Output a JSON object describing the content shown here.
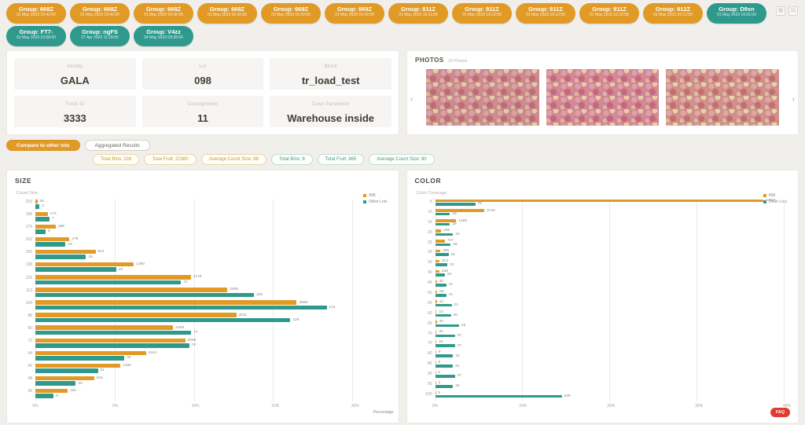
{
  "groups": {
    "rows": [
      [
        {
          "label": "Group: 668Z",
          "datetime": "01 May 2023 15:42:00",
          "variant": "orange"
        },
        {
          "label": "Group: 668Z",
          "datetime": "01 May 2023 15:42:00",
          "variant": "orange"
        },
        {
          "label": "Group: 668Z",
          "datetime": "01 May 2023 15:42:00",
          "variant": "orange"
        },
        {
          "label": "Group: 668Z",
          "datetime": "01 May 2023 15:42:00",
          "variant": "orange"
        },
        {
          "label": "Group: 669Z",
          "datetime": "01 May 2023 15:42:00",
          "variant": "orange"
        },
        {
          "label": "Group: 669Z",
          "datetime": "01 May 2023 15:42:00",
          "variant": "orange"
        },
        {
          "label": "Group: 811Z",
          "datetime": "01 May 2023 16:11:00",
          "variant": "orange"
        },
        {
          "label": "Group: 811Z",
          "datetime": "01 May 2023 16:12:00",
          "variant": "orange"
        },
        {
          "label": "Group: 811Z",
          "datetime": "01 May 2023 16:12:00",
          "variant": "orange"
        },
        {
          "label": "Group: 811Z",
          "datetime": "01 May 2023 16:12:00",
          "variant": "orange"
        },
        {
          "label": "Group: 812Z",
          "datetime": "01 May 2023 16:12:00",
          "variant": "orange"
        },
        {
          "label": "Group: D9xn",
          "datetime": "01 May 2023 16:01:00",
          "variant": "teal"
        }
      ],
      [
        {
          "label": "Group: FT7-",
          "datetime": "01 May 2023 15:58:00",
          "variant": "teal"
        },
        {
          "label": "Group: ngFS",
          "datetime": "27 Apr 2023 11:18:00",
          "variant": "teal"
        },
        {
          "label": "Group: V4zz",
          "datetime": "04 May 2023 09:28:00",
          "variant": "teal"
        }
      ]
    ]
  },
  "header_icons": [
    {
      "name": "grid-view-icon",
      "glyph": "▦"
    },
    {
      "name": "card-view-icon",
      "glyph": "▤"
    }
  ],
  "info": {
    "fields": [
      {
        "label": "Variety",
        "value": "GALA"
      },
      {
        "label": "Lot",
        "value": "098"
      },
      {
        "label": "Block",
        "value": "tr_load_test"
      },
      {
        "label": "Truck ID",
        "value": "3333"
      },
      {
        "label": "Consignment",
        "value": "11"
      },
      {
        "label": "Color Parameter",
        "value": "Warehouse inside"
      }
    ]
  },
  "photos": {
    "title": "PHOTOS",
    "count_label": "18 Photos",
    "prev": "‹",
    "next": "›",
    "image_count": 3,
    "image_alt": "apple-bin-photo"
  },
  "actions": {
    "compare": "Compare to other lots",
    "aggregated": "Aggregated Results"
  },
  "stats": [
    {
      "label": "Total Bins: 228",
      "variant": "orange"
    },
    {
      "label": "Total Fruit: 22380",
      "variant": "orange"
    },
    {
      "label": "Average Count Size: 88",
      "variant": "orange"
    },
    {
      "label": "Total Bins: 8",
      "variant": "teal"
    },
    {
      "label": "Total Fruit: 865",
      "variant": "teal"
    },
    {
      "label": "Average Count Size: 80",
      "variant": "teal"
    }
  ],
  "colors": {
    "orange": "#e29a26",
    "teal": "#2f9a8c",
    "faq_red": "#e13b2f"
  },
  "faq_label": "FAQ",
  "chart_data": [
    {
      "id": "size",
      "type": "bar",
      "orientation": "horizontal",
      "title": "SIZE",
      "axis_title": "Count Size",
      "xlabel": "Percentage",
      "x_ticks": [
        "0%",
        "5%",
        "10%",
        "15%",
        "20%"
      ],
      "tick_pos": [
        0,
        22.7,
        45.5,
        68.2,
        90.9
      ],
      "legend_position": "top-right",
      "grid": true,
      "categories": [
        "216",
        "198",
        "175",
        "163",
        "150",
        "138",
        "125",
        "113",
        "100",
        "88",
        "80",
        "72",
        "64",
        "56",
        "48",
        "36"
      ],
      "series": [
        {
          "name": "098",
          "color": "#e29a26",
          "values": [
            30,
            173,
            286,
            478,
            841,
            1380,
            2176,
            2688,
            3658,
            2811,
            1929,
            2096,
            1544,
            1190,
            824,
            451
          ],
          "widths": [
            0.6,
            3.5,
            5.8,
            9.7,
            17.1,
            28,
            44.2,
            54.6,
            74.3,
            57.1,
            39.2,
            42.6,
            31.4,
            24.2,
            16.7,
            9.2
          ]
        },
        {
          "name": "Other Lots",
          "color": "#2f9a8c",
          "values": [
            2,
            7,
            5,
            15,
            25,
            40,
            72,
            108,
            144,
            126,
            77,
            76,
            44,
            31,
            20,
            9
          ],
          "widths": [
            1.2,
            4,
            2.9,
            8.6,
            14.4,
            23,
            41.4,
            62.1,
            82.8,
            72.5,
            44.3,
            43.7,
            25.3,
            17.8,
            11.5,
            5.2
          ]
        }
      ]
    },
    {
      "id": "color",
      "type": "bar",
      "orientation": "horizontal",
      "title": "COLOR",
      "axis_title": "Color Coverage",
      "xlabel": "",
      "x_ticks": [
        "0%",
        "10%",
        "20%",
        "30%",
        "40%"
      ],
      "tick_pos": [
        0,
        25,
        50,
        75,
        100
      ],
      "legend_position": "top-right",
      "grid": true,
      "categories": [
        "5",
        "10",
        "15",
        "20",
        "25",
        "30",
        "35",
        "40",
        "45",
        "50",
        "55",
        "60",
        "65",
        "70",
        "75",
        "80",
        "85",
        "90",
        "95",
        "100"
      ],
      "series": [
        {
          "name": "098",
          "color": "#e29a26",
          "values": [
            24827,
            3725,
            1588,
            455,
            747,
            400,
            313,
            325,
            30,
            88,
            44,
            23,
            40,
            30,
            28,
            9,
            6,
            5,
            3,
            5
          ],
          "widths": [
            93.2,
            14,
            6,
            1.7,
            2.8,
            1.5,
            1.2,
            1.2,
            0.5,
            0.6,
            0.5,
            0.4,
            0.5,
            0.4,
            0.4,
            0.3,
            0.25,
            0.2,
            0.2,
            0.2
          ]
        },
        {
          "name": "Other Lots",
          "color": "#2f9a8c",
          "values": [
            76,
            28,
            28,
            34,
            29,
            25,
            23,
            18,
            21,
            21,
            31,
            30,
            45,
            37,
            37,
            34,
            33,
            37,
            34,
            239
          ],
          "widths": [
            11.4,
            4.2,
            4.2,
            5.1,
            4.4,
            3.8,
            3.5,
            2.7,
            3.2,
            3.2,
            4.7,
            4.5,
            6.8,
            5.6,
            5.6,
            5.1,
            5,
            5.6,
            5.1,
            36
          ]
        }
      ]
    }
  ]
}
